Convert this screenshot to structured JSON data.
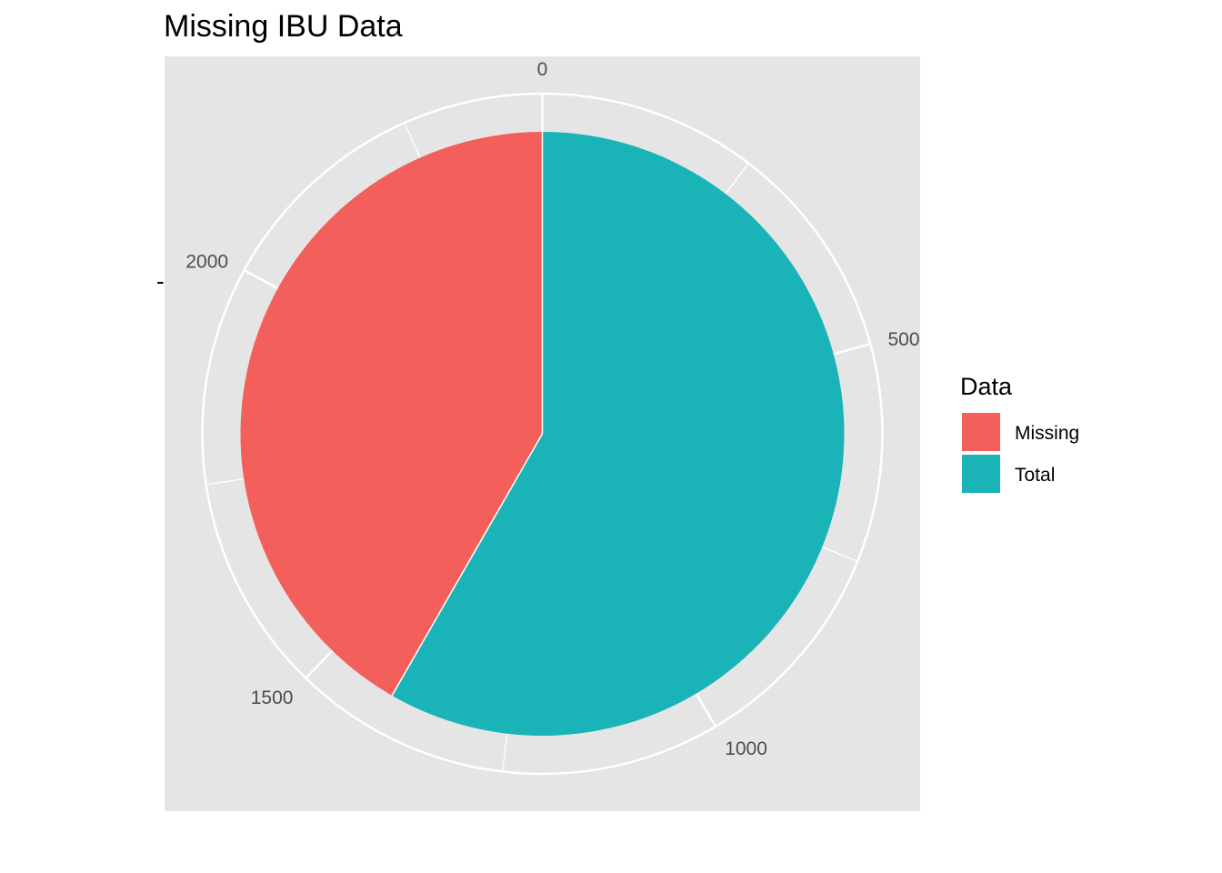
{
  "chart_data": {
    "type": "pie",
    "title": "Missing IBU Data",
    "xlabel": "",
    "ylabel": "-",
    "slices": [
      {
        "label": "Total",
        "value": 1405
      },
      {
        "label": "Missing",
        "value": 1005
      }
    ],
    "axis_ticks": [
      "0",
      "500",
      "1000",
      "1500",
      "2000"
    ],
    "axis_tick_values": [
      0,
      500,
      1000,
      1500,
      2000
    ],
    "axis_total": 2410,
    "grid": true,
    "legend": {
      "title": "Data",
      "position": "right",
      "entries": [
        {
          "label": "Missing",
          "color": "#F35F5B"
        },
        {
          "label": "Total",
          "color": "#1AB3B8"
        }
      ]
    },
    "colors": {
      "Missing": "#F35F5B",
      "Total": "#1AB3B8",
      "panel": "#E5E5E5",
      "grid": "#FFFFFF"
    }
  }
}
